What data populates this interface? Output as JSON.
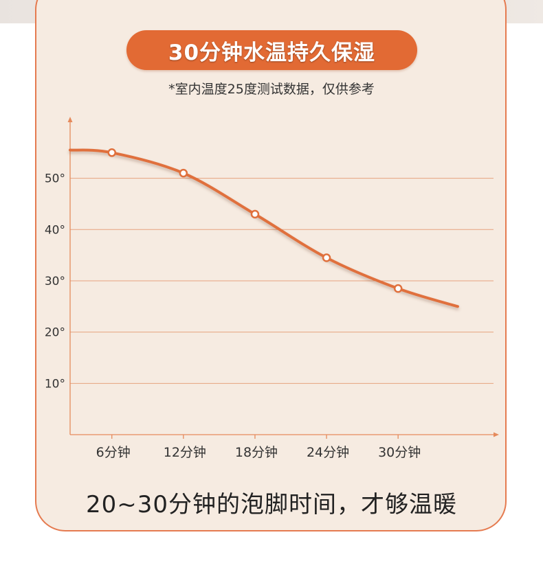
{
  "title": "30分钟水温持久保湿",
  "subtitle": "*室内温度25度测试数据，仅供参考",
  "caption": "20~30分钟的泡脚时间，才够温暖",
  "colors": {
    "accent": "#e26a34",
    "curve": "#e0703c",
    "axis": "#e58a5c",
    "grid": "#e6a27e",
    "card_bg": "#f6ebe1",
    "card_border": "#e57a4f",
    "text": "#333333"
  },
  "chart_data": {
    "type": "line",
    "title": "30分钟水温持久保湿",
    "categories": [
      "6分钟",
      "12分钟",
      "18分钟",
      "24分钟",
      "30分钟"
    ],
    "x": [
      6,
      12,
      18,
      24,
      30
    ],
    "series": [
      {
        "values": [
          55,
          51,
          43,
          34.5,
          28.5
        ]
      }
    ],
    "curve_extension": {
      "start": [
        2.5,
        55.5
      ],
      "end": [
        35,
        25
      ]
    },
    "yticks": [
      10,
      20,
      30,
      40,
      50
    ],
    "ytick_labels": [
      "10°",
      "20°",
      "30°",
      "40°",
      "50°"
    ],
    "ylim": [
      0,
      62
    ],
    "xlim": [
      2.5,
      38
    ],
    "xlabel": "",
    "ylabel": "",
    "grid": true,
    "legend": "none"
  }
}
